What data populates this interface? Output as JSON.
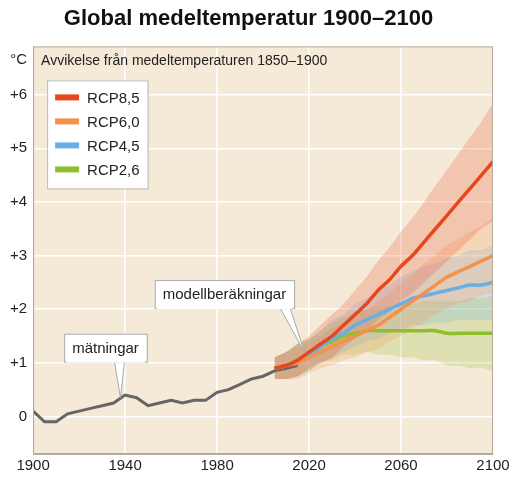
{
  "chart_data": {
    "type": "line",
    "title": "Global medeltemperatur 1900–2100",
    "subtitle": "Avvikelse från medeltemperaturen 1850–1900",
    "ylabel": "°C",
    "x": [
      1900,
      1905,
      1910,
      1915,
      1920,
      1925,
      1930,
      1935,
      1940,
      1945,
      1950,
      1955,
      1960,
      1965,
      1970,
      1975,
      1980,
      1985,
      1990,
      1995,
      2000,
      2005,
      2010,
      2015,
      2020,
      2025,
      2030,
      2035,
      2040,
      2045,
      2050,
      2055,
      2060,
      2065,
      2070,
      2075,
      2080,
      2085,
      2090,
      2095,
      2100
    ],
    "measurements": {
      "color": "#666666",
      "values": [
        0.1,
        -0.1,
        -0.1,
        0.05,
        0.1,
        0.15,
        0.2,
        0.25,
        0.4,
        0.35,
        0.2,
        0.25,
        0.3,
        0.25,
        0.3,
        0.3,
        0.45,
        0.5,
        0.6,
        0.7,
        0.75,
        0.85,
        0.9,
        0.95,
        null,
        null,
        null,
        null,
        null,
        null,
        null,
        null,
        null,
        null,
        null,
        null,
        null,
        null,
        null,
        null,
        null
      ]
    },
    "series": [
      {
        "name": "RCP8,5",
        "color": "#e8461e",
        "values": [
          null,
          null,
          null,
          null,
          null,
          null,
          null,
          null,
          null,
          null,
          null,
          null,
          null,
          null,
          null,
          null,
          null,
          null,
          null,
          null,
          null,
          0.9,
          0.95,
          1.05,
          1.2,
          1.35,
          1.5,
          1.7,
          1.9,
          2.1,
          2.35,
          2.55,
          2.8,
          3.0,
          3.25,
          3.5,
          3.75,
          4.0,
          4.25,
          4.5,
          4.75
        ],
        "band_low": [
          null,
          null,
          null,
          null,
          null,
          null,
          null,
          null,
          null,
          null,
          null,
          null,
          null,
          null,
          null,
          null,
          null,
          null,
          null,
          null,
          null,
          0.7,
          0.7,
          0.75,
          0.9,
          1.0,
          1.1,
          1.3,
          1.45,
          1.6,
          1.8,
          1.95,
          2.15,
          2.3,
          2.5,
          2.7,
          2.9,
          3.1,
          3.3,
          3.5,
          3.65
        ],
        "band_high": [
          null,
          null,
          null,
          null,
          null,
          null,
          null,
          null,
          null,
          null,
          null,
          null,
          null,
          null,
          null,
          null,
          null,
          null,
          null,
          null,
          null,
          1.1,
          1.2,
          1.35,
          1.5,
          1.7,
          1.9,
          2.1,
          2.35,
          2.6,
          2.9,
          3.15,
          3.45,
          3.7,
          4.0,
          4.3,
          4.6,
          4.9,
          5.2,
          5.5,
          5.85
        ]
      },
      {
        "name": "RCP6,0",
        "color": "#f5914a",
        "values": [
          null,
          null,
          null,
          null,
          null,
          null,
          null,
          null,
          null,
          null,
          null,
          null,
          null,
          null,
          null,
          null,
          null,
          null,
          null,
          null,
          null,
          0.9,
          0.95,
          1.0,
          1.1,
          1.2,
          1.3,
          1.4,
          1.5,
          1.6,
          1.7,
          1.85,
          2.0,
          2.15,
          2.3,
          2.45,
          2.6,
          2.7,
          2.8,
          2.9,
          3.0
        ],
        "band_low": [
          null,
          null,
          null,
          null,
          null,
          null,
          null,
          null,
          null,
          null,
          null,
          null,
          null,
          null,
          null,
          null,
          null,
          null,
          null,
          null,
          null,
          0.7,
          0.7,
          0.7,
          0.8,
          0.9,
          0.95,
          1.05,
          1.1,
          1.2,
          1.25,
          1.4,
          1.5,
          1.65,
          1.75,
          1.9,
          2.0,
          2.1,
          2.15,
          2.25,
          2.3
        ],
        "band_high": [
          null,
          null,
          null,
          null,
          null,
          null,
          null,
          null,
          null,
          null,
          null,
          null,
          null,
          null,
          null,
          null,
          null,
          null,
          null,
          null,
          null,
          1.1,
          1.2,
          1.3,
          1.4,
          1.5,
          1.65,
          1.75,
          1.9,
          2.0,
          2.15,
          2.3,
          2.5,
          2.65,
          2.85,
          3.0,
          3.2,
          3.3,
          3.45,
          3.55,
          3.7
        ]
      },
      {
        "name": "RCP4,5",
        "color": "#6aaee6",
        "values": [
          null,
          null,
          null,
          null,
          null,
          null,
          null,
          null,
          null,
          null,
          null,
          null,
          null,
          null,
          null,
          null,
          null,
          null,
          null,
          null,
          null,
          0.9,
          0.95,
          1.05,
          1.15,
          1.3,
          1.45,
          1.55,
          1.7,
          1.8,
          1.9,
          2.0,
          2.1,
          2.2,
          2.25,
          2.3,
          2.35,
          2.4,
          2.45,
          2.45,
          2.5
        ],
        "band_low": [
          null,
          null,
          null,
          null,
          null,
          null,
          null,
          null,
          null,
          null,
          null,
          null,
          null,
          null,
          null,
          null,
          null,
          null,
          null,
          null,
          null,
          0.7,
          0.7,
          0.75,
          0.85,
          1.0,
          1.1,
          1.2,
          1.3,
          1.4,
          1.45,
          1.55,
          1.6,
          1.7,
          1.7,
          1.75,
          1.75,
          1.8,
          1.8,
          1.8,
          1.8
        ],
        "band_high": [
          null,
          null,
          null,
          null,
          null,
          null,
          null,
          null,
          null,
          null,
          null,
          null,
          null,
          null,
          null,
          null,
          null,
          null,
          null,
          null,
          null,
          1.1,
          1.2,
          1.35,
          1.45,
          1.6,
          1.8,
          1.9,
          2.1,
          2.2,
          2.35,
          2.45,
          2.6,
          2.7,
          2.8,
          2.85,
          2.95,
          3.0,
          3.1,
          3.1,
          3.2
        ]
      },
      {
        "name": "RCP2,6",
        "color": "#8dbf2e",
        "values": [
          null,
          null,
          null,
          null,
          null,
          null,
          null,
          null,
          null,
          null,
          null,
          null,
          null,
          null,
          null,
          null,
          null,
          null,
          null,
          null,
          null,
          0.9,
          0.95,
          1.05,
          1.15,
          1.3,
          1.4,
          1.5,
          1.55,
          1.6,
          1.6,
          1.6,
          1.6,
          1.6,
          1.6,
          1.6,
          1.55,
          1.55,
          1.55,
          1.55,
          1.55
        ],
        "band_low": [
          null,
          null,
          null,
          null,
          null,
          null,
          null,
          null,
          null,
          null,
          null,
          null,
          null,
          null,
          null,
          null,
          null,
          null,
          null,
          null,
          null,
          0.7,
          0.7,
          0.75,
          0.85,
          1.0,
          1.05,
          1.15,
          1.15,
          1.2,
          1.15,
          1.15,
          1.1,
          1.1,
          1.05,
          1.05,
          0.95,
          0.95,
          0.9,
          0.9,
          0.85
        ],
        "band_high": [
          null,
          null,
          null,
          null,
          null,
          null,
          null,
          null,
          null,
          null,
          null,
          null,
          null,
          null,
          null,
          null,
          null,
          null,
          null,
          null,
          null,
          1.1,
          1.2,
          1.35,
          1.45,
          1.6,
          1.75,
          1.85,
          1.95,
          2.0,
          2.05,
          2.05,
          2.1,
          2.1,
          2.15,
          2.15,
          2.15,
          2.15,
          2.2,
          2.2,
          2.25
        ]
      }
    ],
    "annotations": [
      {
        "text": "mätningar",
        "x": 1938,
        "y": 0.35
      },
      {
        "text": "modellberäkningar",
        "x": 2018,
        "y": 1.2
      }
    ],
    "xlim": [
      1900,
      2100
    ],
    "xticks": [
      1900,
      1940,
      1980,
      2020,
      2060,
      2100
    ],
    "ylim": [
      -0.7,
      6.9
    ],
    "yticks": [
      0,
      {
        "value": 1,
        "label": "+1"
      },
      {
        "value": 2,
        "label": "+2"
      },
      {
        "value": 3,
        "label": "+3"
      },
      {
        "value": 4,
        "label": "+4"
      },
      {
        "value": 5,
        "label": "+5"
      },
      {
        "value": 6,
        "label": "+6"
      }
    ],
    "grid": true,
    "legend": "upper left"
  }
}
